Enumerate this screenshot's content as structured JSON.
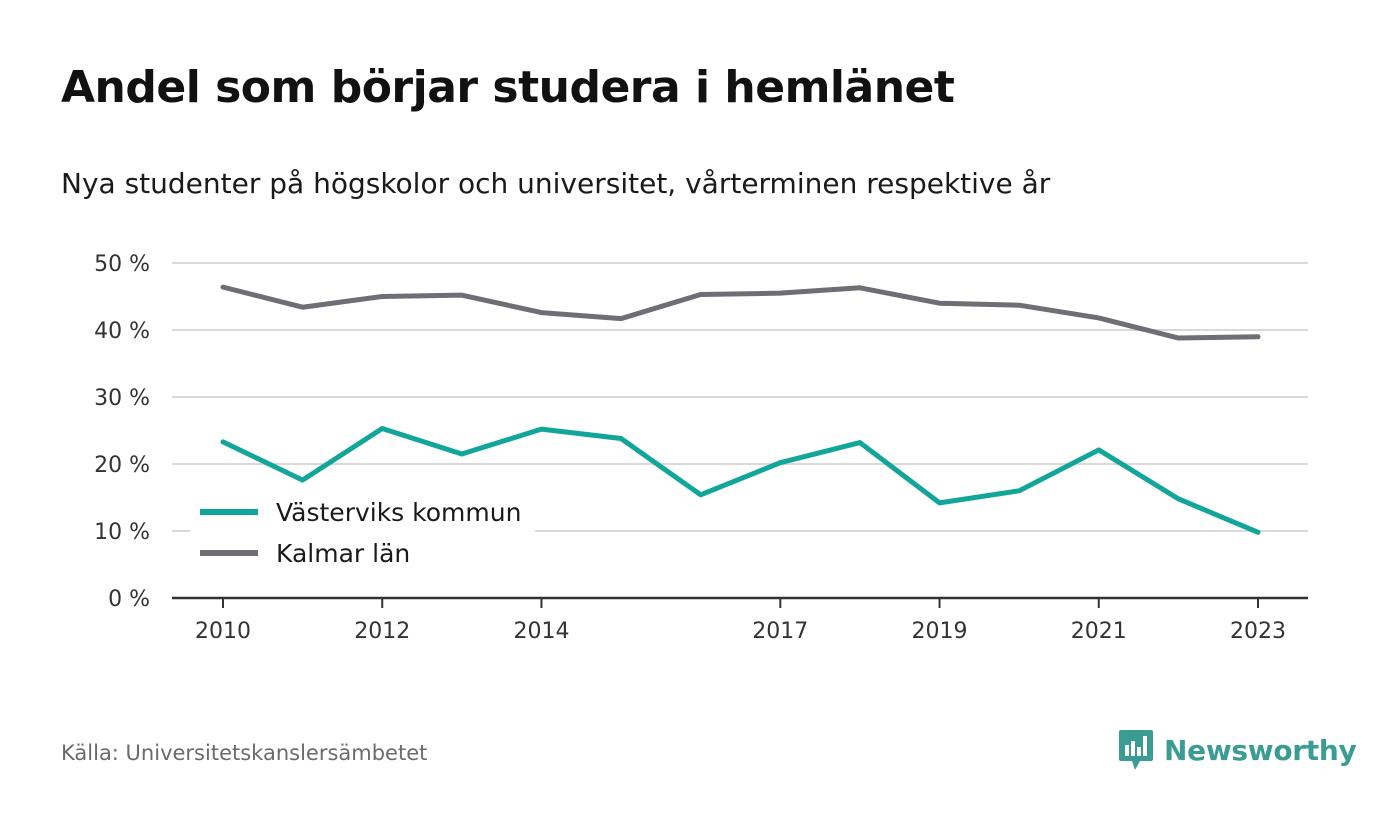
{
  "header": {
    "title": "Andel som börjar studera i hemlänet",
    "subtitle": "Nya studenter på högskolor och universitet, vårterminen respektive år"
  },
  "footer": {
    "source": "Källa: Universitetskanslersämbetet",
    "brand": "Newsworthy",
    "brand_icon": "newsworthy-logo-icon"
  },
  "colors": {
    "vastervik": "#12a59a",
    "kalmar": "#6f6e75",
    "brand": "#3b9c93",
    "grid": "#d9d9d9",
    "axis": "#333333"
  },
  "chart_data": {
    "type": "line",
    "x": [
      2010,
      2011,
      2012,
      2013,
      2014,
      2015,
      2016,
      2017,
      2018,
      2019,
      2020,
      2021,
      2022,
      2023
    ],
    "x_tick_labels": [
      "2010",
      "2012",
      "2014",
      "2017",
      "2019",
      "2021",
      "2023"
    ],
    "x_tick_values": [
      2010,
      2012,
      2014,
      2017,
      2019,
      2021,
      2023
    ],
    "ylim": [
      0,
      50
    ],
    "y_ticks": [
      0,
      10,
      20,
      30,
      40,
      50
    ],
    "y_tick_labels": [
      "0 %",
      "10 %",
      "20 %",
      "30 %",
      "40 %",
      "50 %"
    ],
    "grid": true,
    "legend_position": "bottom-left",
    "series": [
      {
        "name": "Västerviks kommun",
        "color": "#12a59a",
        "values": [
          23.3,
          17.6,
          25.3,
          21.5,
          25.2,
          23.8,
          15.4,
          20.2,
          23.2,
          14.2,
          16.0,
          22.1,
          14.8,
          9.8
        ]
      },
      {
        "name": "Kalmar län",
        "color": "#6f6e75",
        "values": [
          46.4,
          43.4,
          45.0,
          45.2,
          42.6,
          41.7,
          45.3,
          45.5,
          46.3,
          44.0,
          43.7,
          41.8,
          38.8,
          39.0
        ]
      }
    ]
  }
}
